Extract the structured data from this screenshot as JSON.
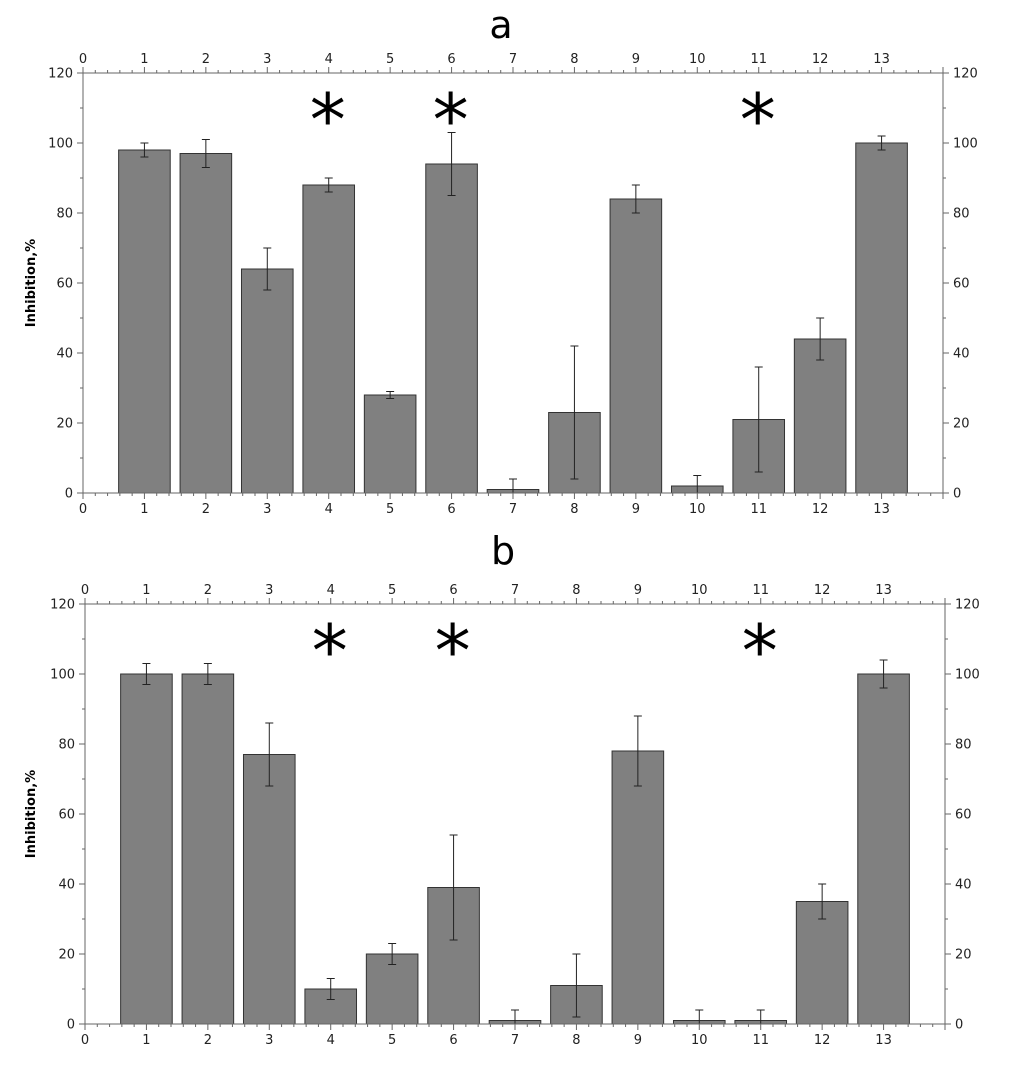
{
  "chart_data": [
    {
      "type": "bar",
      "title": "a",
      "ylabel": "Inhibition,%",
      "xlabel": "",
      "xlim": [
        0,
        14
      ],
      "ylim": [
        0,
        120
      ],
      "x_ticks": [
        0,
        1,
        2,
        3,
        4,
        5,
        6,
        7,
        8,
        9,
        10,
        11,
        12,
        13
      ],
      "y_ticks": [
        0,
        20,
        40,
        60,
        80,
        100,
        120
      ],
      "categories": [
        1,
        2,
        3,
        4,
        5,
        6,
        7,
        8,
        9,
        10,
        11,
        12,
        13
      ],
      "values": [
        98,
        97,
        64,
        88,
        28,
        94,
        1,
        23,
        84,
        2,
        21,
        44,
        100
      ],
      "errors": [
        2,
        4,
        6,
        2,
        1,
        9,
        3,
        19,
        4,
        3,
        15,
        6,
        2
      ],
      "annotations": [
        {
          "x": 4,
          "text": "*"
        },
        {
          "x": 6,
          "text": "*"
        },
        {
          "x": 11,
          "text": "*"
        }
      ],
      "bar_color": "#808080",
      "grid": false
    },
    {
      "type": "bar",
      "title": "b",
      "ylabel": "Inhibition,%",
      "xlabel": "",
      "xlim": [
        0,
        14
      ],
      "ylim": [
        0,
        120
      ],
      "x_ticks": [
        0,
        1,
        2,
        3,
        4,
        5,
        6,
        7,
        8,
        9,
        10,
        11,
        12,
        13
      ],
      "y_ticks": [
        0,
        20,
        40,
        60,
        80,
        100,
        120
      ],
      "categories": [
        1,
        2,
        3,
        4,
        5,
        6,
        7,
        8,
        9,
        10,
        11,
        12,
        13
      ],
      "values": [
        100,
        100,
        77,
        10,
        20,
        39,
        1,
        11,
        78,
        1,
        1,
        35,
        100
      ],
      "errors": [
        3,
        3,
        9,
        3,
        3,
        15,
        3,
        9,
        10,
        3,
        3,
        5,
        4
      ],
      "annotations": [
        {
          "x": 4,
          "text": "*"
        },
        {
          "x": 6,
          "text": "*"
        },
        {
          "x": 11,
          "text": "*"
        }
      ],
      "bar_color": "#808080",
      "grid": false
    }
  ]
}
